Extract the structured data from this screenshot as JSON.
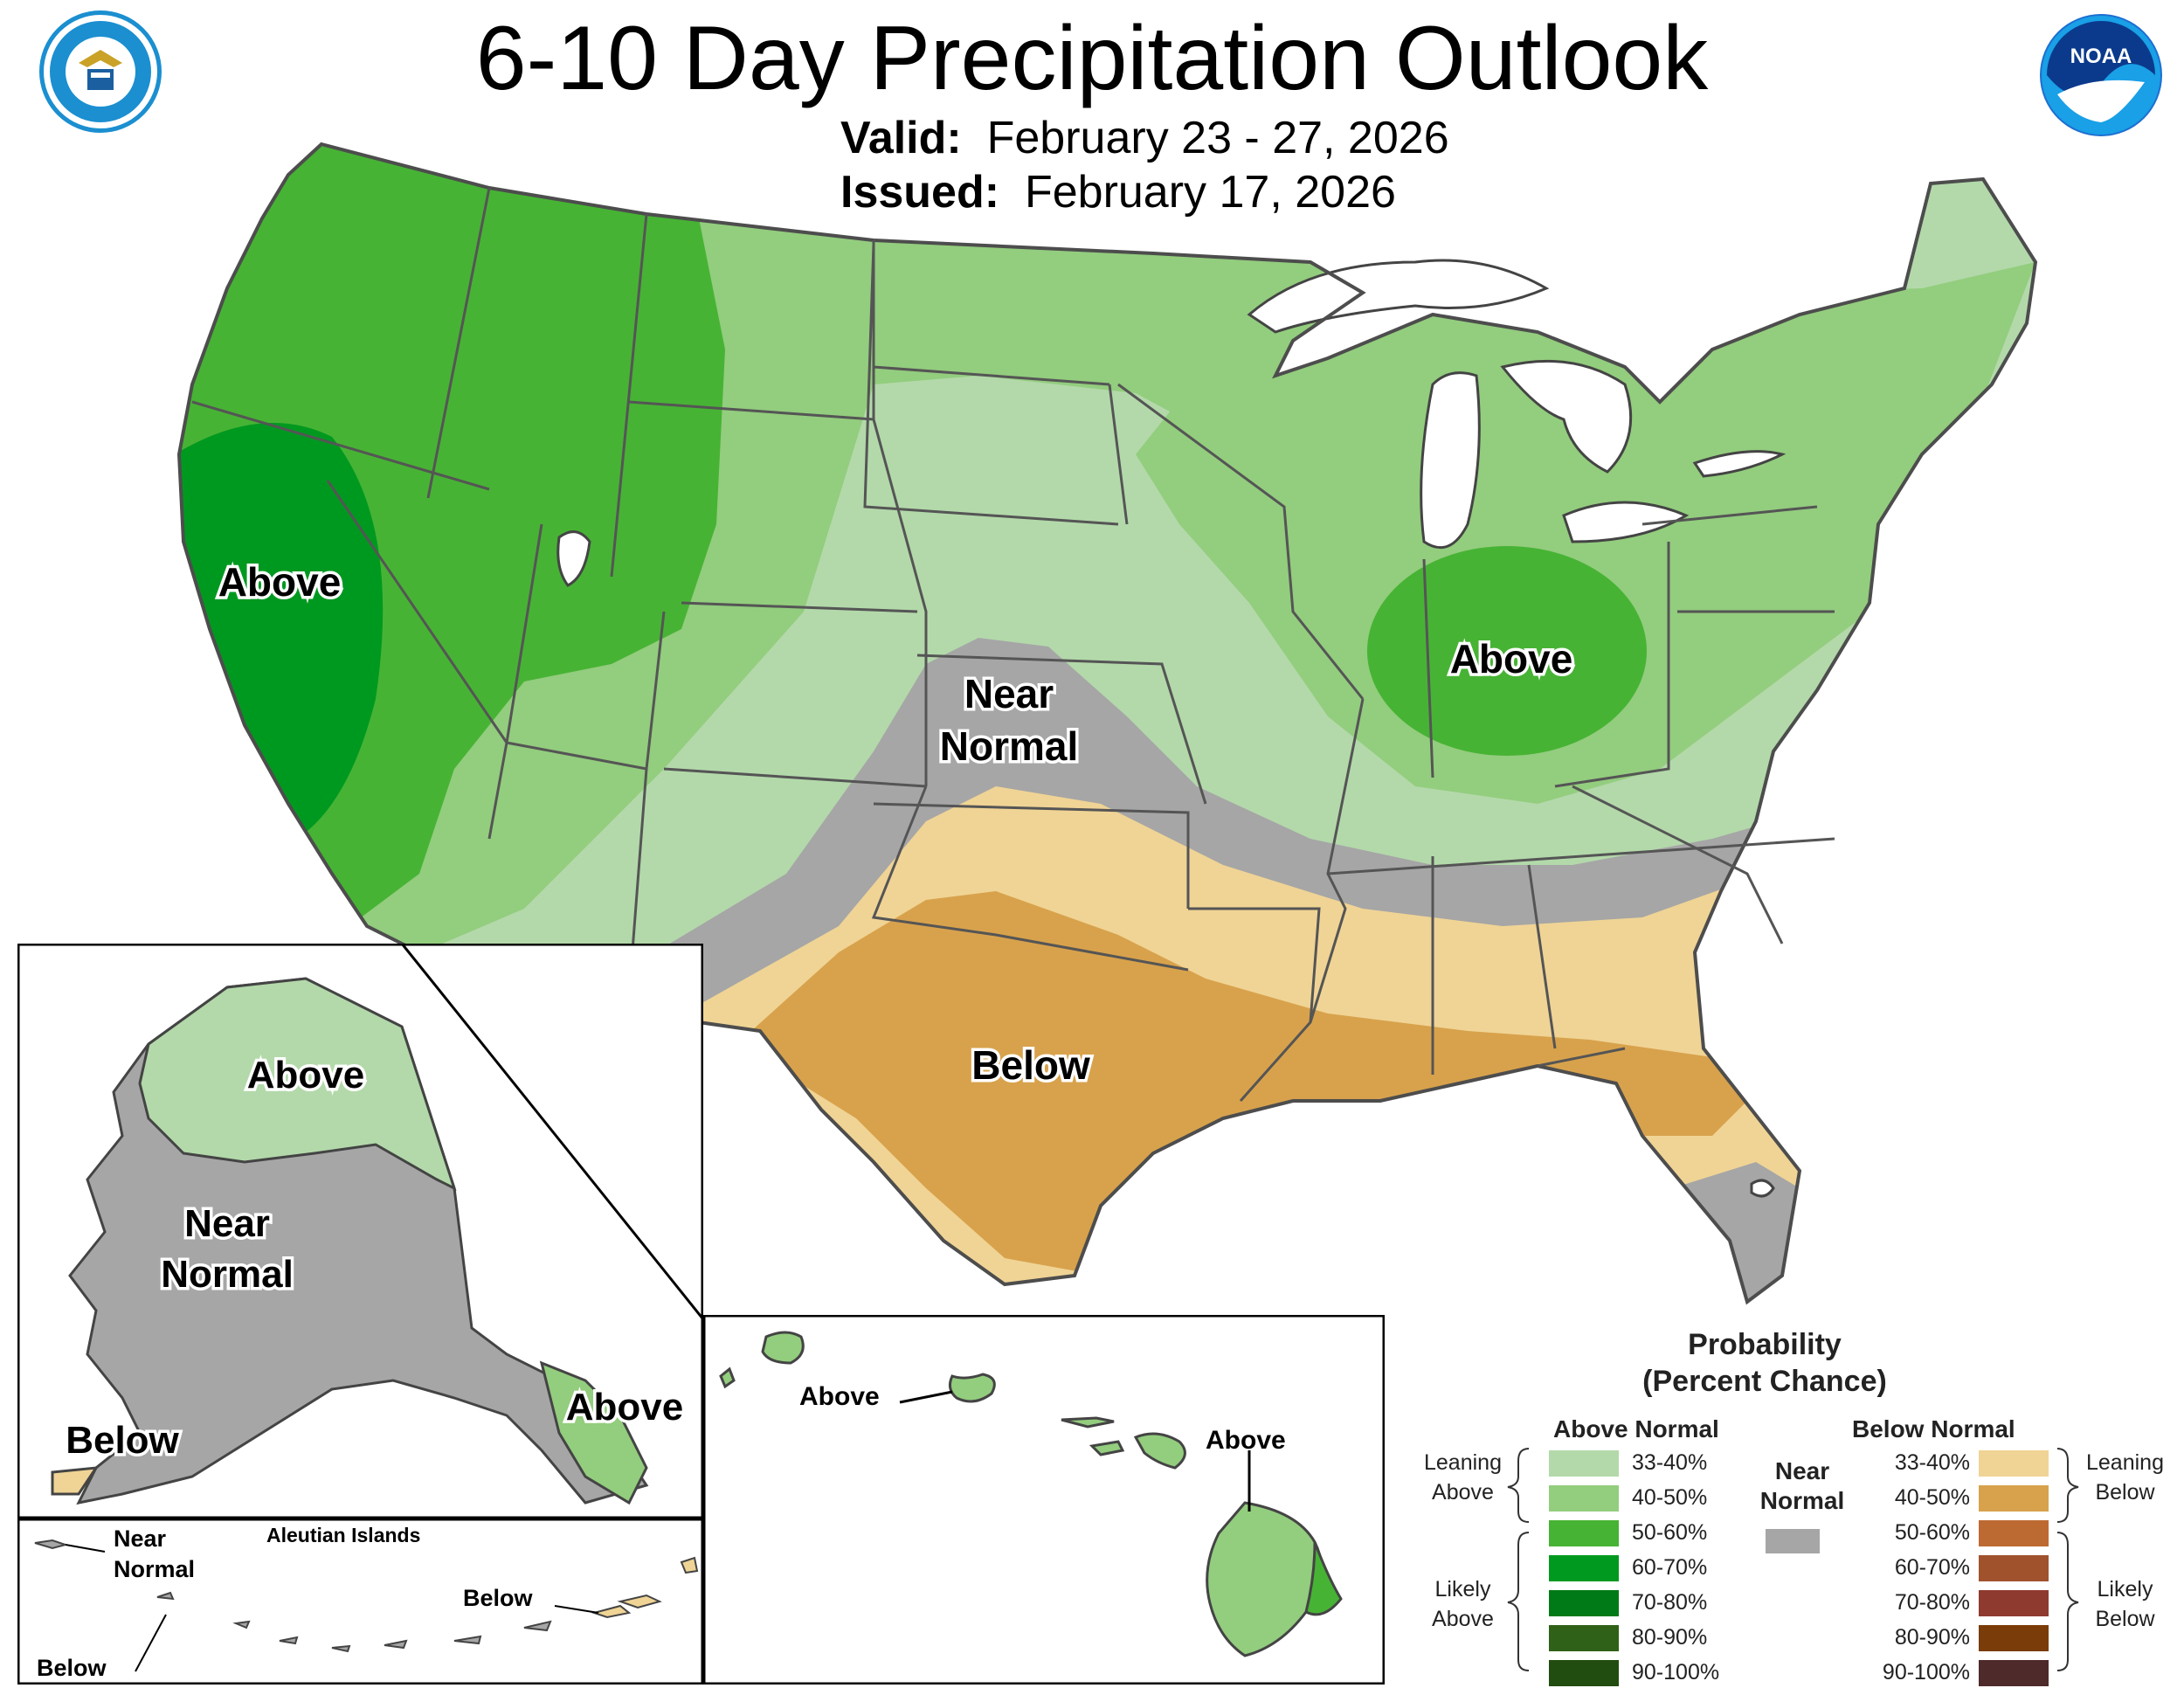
{
  "header": {
    "title": "6-10 Day Precipitation Outlook",
    "valid_label": "Valid:",
    "valid_dates": "February 23 - 27, 2026",
    "issued_label": "Issued:",
    "issued_date": "February 17, 2026"
  },
  "logos": {
    "commerce_icon": "department-of-commerce-seal",
    "noaa_icon": "noaa-logo",
    "noaa_text": "NOAA"
  },
  "conus": {
    "labels": {
      "above_west": "Above",
      "near_normal_line1": "Near",
      "near_normal_line2": "Normal",
      "above_ohio": "Above",
      "below_south": "Below"
    }
  },
  "alaska": {
    "labels": {
      "above_north": "Above",
      "near_line1": "Near",
      "near_line2": "Normal",
      "below_sw": "Below",
      "above_se": "Above"
    }
  },
  "aleutians": {
    "title": "Aleutian Islands",
    "near_line1": "Near",
    "near_line2": "Normal",
    "below_east": "Below",
    "below_west": "Below"
  },
  "hawaii": {
    "above_left": "Above",
    "above_right": "Above"
  },
  "legend": {
    "title_line1": "Probability",
    "title_line2": "(Percent Chance)",
    "above_header": "Above Normal",
    "below_header": "Below Normal",
    "near_line1": "Near",
    "near_line2": "Normal",
    "leaning_above_1": "Leaning",
    "leaning_above_2": "Above",
    "likely_above_1": "Likely",
    "likely_above_2": "Above",
    "leaning_below_1": "Leaning",
    "leaning_below_2": "Below",
    "likely_below_1": "Likely",
    "likely_below_2": "Below",
    "above_ranges": [
      "33-40%",
      "40-50%",
      "50-60%",
      "60-70%",
      "70-80%",
      "80-90%",
      "90-100%"
    ],
    "below_ranges": [
      "33-40%",
      "40-50%",
      "50-60%",
      "60-70%",
      "70-80%",
      "80-90%",
      "90-100%"
    ],
    "above_colors": [
      "#b3d9aa",
      "#93cd7e",
      "#47b334",
      "#009920",
      "#007a16",
      "#2f6118",
      "#224d10"
    ],
    "below_colors": [
      "#f0d495",
      "#d8a24c",
      "#bd6a32",
      "#a0522d",
      "#8f3a2f",
      "#7a3c08",
      "#4e2a2a"
    ],
    "near_color": "#a6a6a6"
  }
}
